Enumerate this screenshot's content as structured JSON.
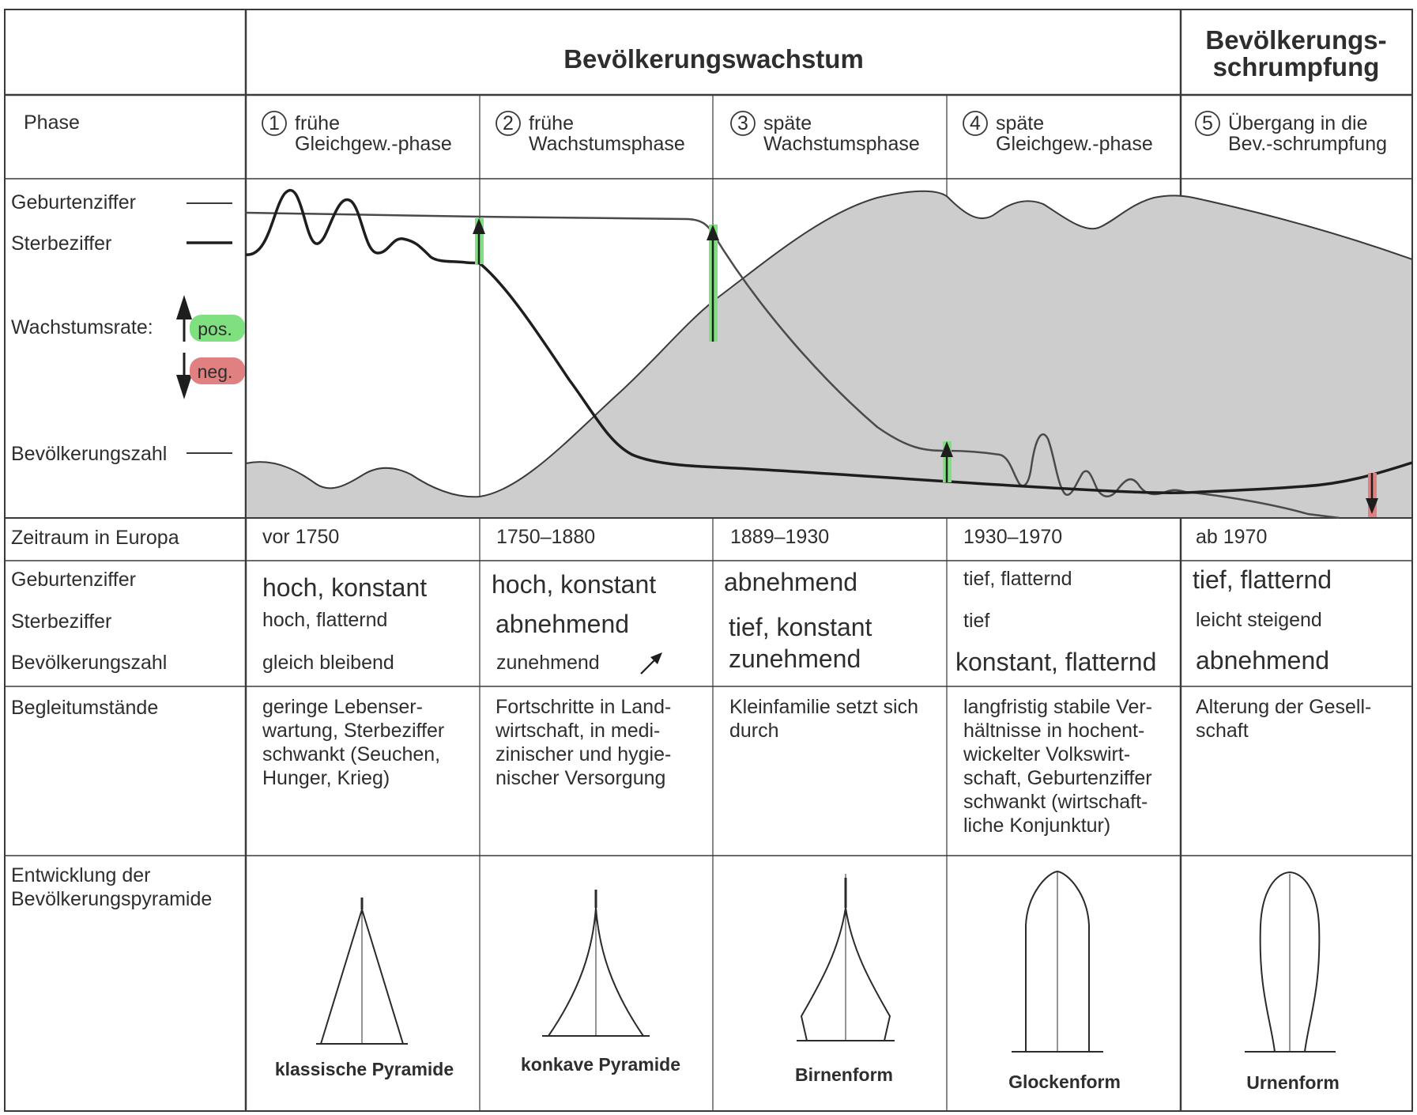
{
  "header": {
    "growth": "Bevölkerungswachstum",
    "shrink_line1": "Bevölkerungs-",
    "shrink_line2": "schrumpfung"
  },
  "phase_label": "Phase",
  "phases": [
    {
      "num": "1",
      "line1": "frühe",
      "line2": "Gleichgew.-phase"
    },
    {
      "num": "2",
      "line1": "frühe",
      "line2": "Wachstumsphase"
    },
    {
      "num": "3",
      "line1": "späte",
      "line2": "Wachstumsphase"
    },
    {
      "num": "4",
      "line1": "späte",
      "line2": "Gleichgew.-phase"
    },
    {
      "num": "5",
      "line1": "Übergang in die",
      "line2": "Bev.-schrumpfung"
    }
  ],
  "legend": {
    "birth": "Geburtenziffer",
    "death": "Sterbeziffer",
    "rate": "Wachstumsrate:",
    "pos": "pos.",
    "neg": "neg.",
    "population": "Bevölkerungszahl"
  },
  "colors": {
    "pos": "#7ee07e",
    "neg": "#e08080",
    "area": "#cdcdcd",
    "line": "#2b2b2b"
  },
  "row_labels": {
    "zeitraum": "Zeitraum in Europa",
    "geburten": "Geburtenziffer",
    "sterbe": "Sterbeziffer",
    "bevoelkerung": "Bevölkerungszahl",
    "begleit": "Begleitumstände",
    "pyramide_line1": "Entwicklung der",
    "pyramide_line2": "Bevölkerungspyramide"
  },
  "zeitraum": [
    "vor 1750",
    "1750–1880",
    "1889–1930",
    "1930–1970",
    "ab 1970"
  ],
  "geburten": [
    "hoch, konstant",
    "hoch, konstant",
    "abnehmend",
    "tief, flatternd",
    "tief, flatternd"
  ],
  "sterbe": [
    "hoch, flatternd",
    "abnehmend",
    "tief, konstant",
    "tief",
    "leicht steigend"
  ],
  "bevoelkerung": [
    "gleich bleibend",
    "zunehmend",
    "zunehmend",
    "konstant, flatternd",
    "abnehmend"
  ],
  "begleit": [
    [
      "geringe Lebenser-",
      "wartung, Sterbeziffer",
      "schwankt (Seuchen,",
      "Hunger, Krieg)"
    ],
    [
      "Fortschritte in Land-",
      "wirtschaft, in medi-",
      "zinischer und hygie-",
      "nischer Versorgung"
    ],
    [
      "Kleinfamilie setzt sich",
      "durch"
    ],
    [
      "langfristig stabile Ver-",
      "hältnisse in hochent-",
      "wickelter Volkswirt-",
      "schaft, Geburtenziffer",
      "schwankt (wirtschaft-",
      "liche Konjunktur)"
    ],
    [
      "Alterung der Gesell-",
      "schaft"
    ]
  ],
  "pyramid_names": [
    "klassische Pyramide",
    "konkave Pyramide",
    "Birnenform",
    "Glockenform",
    "Urnenform"
  ]
}
